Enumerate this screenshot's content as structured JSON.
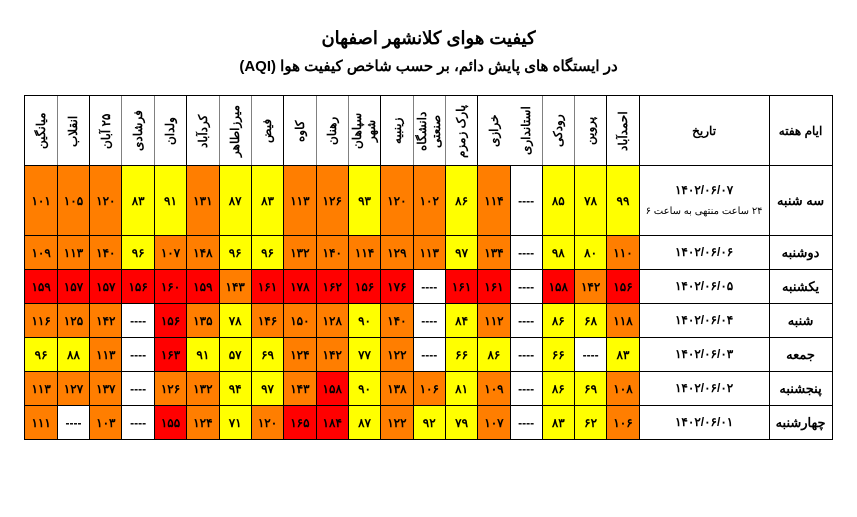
{
  "title_main": "کیفیت هوای کلانشهر اصفهان",
  "title_sub": "در ایستگاه های پایش دائم، بر حسب شاخص کیفیت هوا (AQI)",
  "colors": {
    "yellow": "#ffff00",
    "orange": "#ff7e00",
    "red": "#ff0000",
    "white": "#ffffff"
  },
  "columns": [
    "ایام هفته",
    "تاریخ",
    "احمدآباد",
    "پروین",
    "رودکی",
    "استانداری",
    "خرازی",
    "پارک زمزم",
    "دانشگاه صنعتی",
    "زینبیه",
    "سپاهان شهر",
    "رهنان",
    "کاوه",
    "فیض",
    "میرزاطاهر",
    "کردآباد",
    "ولدان",
    "فرشادی",
    "۲۵ آبان",
    "انقلاب",
    "میانگین"
  ],
  "rows": [
    {
      "day": "سه شنبه",
      "date": "۱۴۰۲/۰۶/۰۷",
      "date_sub": "۲۴ ساعت منتهی به ساعت ۶",
      "cells": [
        {
          "v": "۹۹",
          "c": "yellow"
        },
        {
          "v": "۷۸",
          "c": "yellow"
        },
        {
          "v": "۸۵",
          "c": "yellow"
        },
        {
          "v": "----",
          "c": "white"
        },
        {
          "v": "۱۱۴",
          "c": "orange"
        },
        {
          "v": "۸۶",
          "c": "yellow"
        },
        {
          "v": "۱۰۲",
          "c": "orange"
        },
        {
          "v": "۱۲۰",
          "c": "orange"
        },
        {
          "v": "۹۳",
          "c": "yellow"
        },
        {
          "v": "۱۲۶",
          "c": "orange"
        },
        {
          "v": "۱۱۳",
          "c": "orange"
        },
        {
          "v": "۸۳",
          "c": "yellow"
        },
        {
          "v": "۸۷",
          "c": "yellow"
        },
        {
          "v": "۱۳۱",
          "c": "orange"
        },
        {
          "v": "۹۱",
          "c": "yellow"
        },
        {
          "v": "۸۳",
          "c": "yellow"
        },
        {
          "v": "۱۲۰",
          "c": "orange"
        },
        {
          "v": "۱۰۵",
          "c": "orange"
        },
        {
          "v": "۱۰۱",
          "c": "orange"
        }
      ]
    },
    {
      "day": "دوشنبه",
      "date": "۱۴۰۲/۰۶/۰۶",
      "cells": [
        {
          "v": "۱۱۰",
          "c": "orange"
        },
        {
          "v": "۸۰",
          "c": "yellow"
        },
        {
          "v": "۹۸",
          "c": "yellow"
        },
        {
          "v": "----",
          "c": "white"
        },
        {
          "v": "۱۳۴",
          "c": "orange"
        },
        {
          "v": "۹۷",
          "c": "yellow"
        },
        {
          "v": "۱۱۳",
          "c": "orange"
        },
        {
          "v": "۱۲۹",
          "c": "orange"
        },
        {
          "v": "۱۱۴",
          "c": "orange"
        },
        {
          "v": "۱۴۰",
          "c": "orange"
        },
        {
          "v": "۱۳۲",
          "c": "orange"
        },
        {
          "v": "۹۶",
          "c": "yellow"
        },
        {
          "v": "۹۶",
          "c": "yellow"
        },
        {
          "v": "۱۴۸",
          "c": "orange"
        },
        {
          "v": "۱۰۷",
          "c": "orange"
        },
        {
          "v": "۹۶",
          "c": "yellow"
        },
        {
          "v": "۱۴۰",
          "c": "orange"
        },
        {
          "v": "۱۱۳",
          "c": "orange"
        },
        {
          "v": "۱۰۹",
          "c": "orange"
        }
      ]
    },
    {
      "day": "یکشنبه",
      "date": "۱۴۰۲/۰۶/۰۵",
      "cells": [
        {
          "v": "۱۵۶",
          "c": "red"
        },
        {
          "v": "۱۴۲",
          "c": "orange"
        },
        {
          "v": "۱۵۸",
          "c": "red"
        },
        {
          "v": "----",
          "c": "white"
        },
        {
          "v": "۱۶۱",
          "c": "red"
        },
        {
          "v": "۱۶۱",
          "c": "red"
        },
        {
          "v": "----",
          "c": "white"
        },
        {
          "v": "۱۷۶",
          "c": "red"
        },
        {
          "v": "۱۵۶",
          "c": "red"
        },
        {
          "v": "۱۶۲",
          "c": "red"
        },
        {
          "v": "۱۷۸",
          "c": "red"
        },
        {
          "v": "۱۶۱",
          "c": "red"
        },
        {
          "v": "۱۴۳",
          "c": "orange"
        },
        {
          "v": "۱۵۹",
          "c": "red"
        },
        {
          "v": "۱۶۰",
          "c": "red"
        },
        {
          "v": "۱۵۶",
          "c": "red"
        },
        {
          "v": "۱۵۷",
          "c": "red"
        },
        {
          "v": "۱۵۷",
          "c": "red"
        },
        {
          "v": "۱۵۹",
          "c": "red"
        }
      ]
    },
    {
      "day": "شنبه",
      "date": "۱۴۰۲/۰۶/۰۴",
      "cells": [
        {
          "v": "۱۱۸",
          "c": "orange"
        },
        {
          "v": "۶۸",
          "c": "yellow"
        },
        {
          "v": "۸۶",
          "c": "yellow"
        },
        {
          "v": "----",
          "c": "white"
        },
        {
          "v": "۱۱۲",
          "c": "orange"
        },
        {
          "v": "۸۴",
          "c": "yellow"
        },
        {
          "v": "----",
          "c": "white"
        },
        {
          "v": "۱۴۰",
          "c": "orange"
        },
        {
          "v": "۹۰",
          "c": "yellow"
        },
        {
          "v": "۱۲۸",
          "c": "orange"
        },
        {
          "v": "۱۵۰",
          "c": "orange"
        },
        {
          "v": "۱۴۶",
          "c": "orange"
        },
        {
          "v": "۷۸",
          "c": "yellow"
        },
        {
          "v": "۱۳۵",
          "c": "orange"
        },
        {
          "v": "۱۵۶",
          "c": "red"
        },
        {
          "v": "----",
          "c": "white"
        },
        {
          "v": "۱۴۲",
          "c": "orange"
        },
        {
          "v": "۱۲۵",
          "c": "orange"
        },
        {
          "v": "۱۱۶",
          "c": "orange"
        }
      ]
    },
    {
      "day": "جمعه",
      "date": "۱۴۰۲/۰۶/۰۳",
      "cells": [
        {
          "v": "۸۳",
          "c": "yellow"
        },
        {
          "v": "----",
          "c": "white"
        },
        {
          "v": "۶۶",
          "c": "yellow"
        },
        {
          "v": "----",
          "c": "white"
        },
        {
          "v": "۸۶",
          "c": "yellow"
        },
        {
          "v": "۶۶",
          "c": "yellow"
        },
        {
          "v": "----",
          "c": "white"
        },
        {
          "v": "۱۲۲",
          "c": "orange"
        },
        {
          "v": "۷۷",
          "c": "yellow"
        },
        {
          "v": "۱۴۲",
          "c": "orange"
        },
        {
          "v": "۱۲۴",
          "c": "orange"
        },
        {
          "v": "۶۹",
          "c": "yellow"
        },
        {
          "v": "۵۷",
          "c": "yellow"
        },
        {
          "v": "۹۱",
          "c": "yellow"
        },
        {
          "v": "۱۶۳",
          "c": "red"
        },
        {
          "v": "----",
          "c": "white"
        },
        {
          "v": "۱۱۳",
          "c": "orange"
        },
        {
          "v": "۸۸",
          "c": "yellow"
        },
        {
          "v": "۹۶",
          "c": "yellow"
        }
      ]
    },
    {
      "day": "پنجشنبه",
      "date": "۱۴۰۲/۰۶/۰۲",
      "cells": [
        {
          "v": "۱۰۸",
          "c": "orange"
        },
        {
          "v": "۶۹",
          "c": "yellow"
        },
        {
          "v": "۸۶",
          "c": "yellow"
        },
        {
          "v": "----",
          "c": "white"
        },
        {
          "v": "۱۰۹",
          "c": "orange"
        },
        {
          "v": "۸۱",
          "c": "yellow"
        },
        {
          "v": "۱۰۶",
          "c": "orange"
        },
        {
          "v": "۱۳۸",
          "c": "orange"
        },
        {
          "v": "۹۰",
          "c": "yellow"
        },
        {
          "v": "۱۵۸",
          "c": "red"
        },
        {
          "v": "۱۴۳",
          "c": "orange"
        },
        {
          "v": "۹۷",
          "c": "yellow"
        },
        {
          "v": "۹۴",
          "c": "yellow"
        },
        {
          "v": "۱۳۲",
          "c": "orange"
        },
        {
          "v": "۱۲۶",
          "c": "orange"
        },
        {
          "v": "----",
          "c": "white"
        },
        {
          "v": "۱۳۷",
          "c": "orange"
        },
        {
          "v": "۱۲۷",
          "c": "orange"
        },
        {
          "v": "۱۱۳",
          "c": "orange"
        }
      ]
    },
    {
      "day": "چهارشنبه",
      "date": "۱۴۰۲/۰۶/۰۱",
      "cells": [
        {
          "v": "۱۰۶",
          "c": "orange"
        },
        {
          "v": "۶۲",
          "c": "yellow"
        },
        {
          "v": "۸۳",
          "c": "yellow"
        },
        {
          "v": "----",
          "c": "white"
        },
        {
          "v": "۱۰۷",
          "c": "orange"
        },
        {
          "v": "۷۹",
          "c": "yellow"
        },
        {
          "v": "۹۲",
          "c": "yellow"
        },
        {
          "v": "۱۲۲",
          "c": "orange"
        },
        {
          "v": "۸۷",
          "c": "yellow"
        },
        {
          "v": "۱۸۴",
          "c": "red"
        },
        {
          "v": "۱۶۵",
          "c": "red"
        },
        {
          "v": "۱۲۰",
          "c": "orange"
        },
        {
          "v": "۷۱",
          "c": "yellow"
        },
        {
          "v": "۱۲۴",
          "c": "orange"
        },
        {
          "v": "۱۵۵",
          "c": "red"
        },
        {
          "v": "----",
          "c": "white"
        },
        {
          "v": "۱۰۳",
          "c": "orange"
        },
        {
          "v": "----",
          "c": "white"
        },
        {
          "v": "۱۱۱",
          "c": "orange"
        }
      ]
    }
  ]
}
